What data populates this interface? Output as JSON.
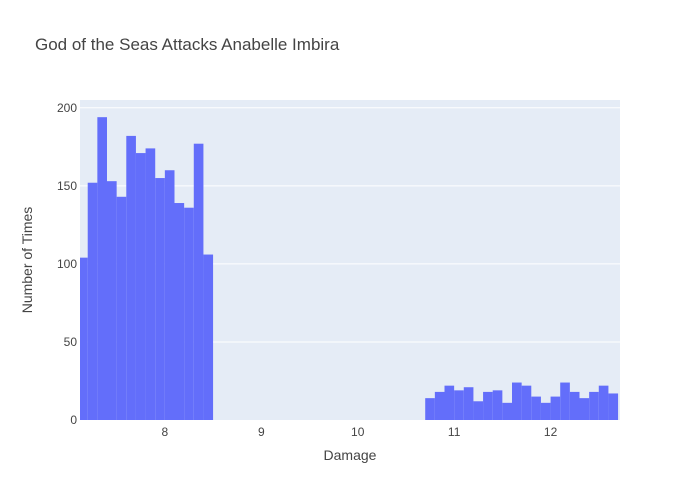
{
  "chart_data": {
    "type": "bar",
    "title": "God of the Seas Attacks Anabelle Imbira",
    "xlabel": "Damage",
    "ylabel": "Number of Times",
    "xlim": [
      7.12,
      12.72
    ],
    "ylim": [
      0,
      205
    ],
    "x_ticks": [
      8,
      9,
      10,
      11,
      12
    ],
    "y_ticks": [
      0,
      50,
      100,
      150,
      200
    ],
    "bin_width": 0.1,
    "grid": true,
    "colors": {
      "bar": "#636efa",
      "plot_bg": "#e5ecf6",
      "grid": "#ffffff",
      "text": "#444444"
    },
    "bins": [
      {
        "x": 7.1,
        "count": 104
      },
      {
        "x": 7.2,
        "count": 152
      },
      {
        "x": 7.3,
        "count": 194
      },
      {
        "x": 7.4,
        "count": 153
      },
      {
        "x": 7.5,
        "count": 143
      },
      {
        "x": 7.6,
        "count": 182
      },
      {
        "x": 7.7,
        "count": 171
      },
      {
        "x": 7.8,
        "count": 174
      },
      {
        "x": 7.9,
        "count": 155
      },
      {
        "x": 8.0,
        "count": 160
      },
      {
        "x": 8.1,
        "count": 139
      },
      {
        "x": 8.2,
        "count": 136
      },
      {
        "x": 8.3,
        "count": 177
      },
      {
        "x": 8.4,
        "count": 106
      },
      {
        "x": 10.7,
        "count": 14
      },
      {
        "x": 10.8,
        "count": 18
      },
      {
        "x": 10.9,
        "count": 22
      },
      {
        "x": 11.0,
        "count": 19
      },
      {
        "x": 11.1,
        "count": 21
      },
      {
        "x": 11.2,
        "count": 12
      },
      {
        "x": 11.3,
        "count": 18
      },
      {
        "x": 11.4,
        "count": 19
      },
      {
        "x": 11.5,
        "count": 11
      },
      {
        "x": 11.6,
        "count": 24
      },
      {
        "x": 11.7,
        "count": 22
      },
      {
        "x": 11.8,
        "count": 15
      },
      {
        "x": 11.9,
        "count": 11
      },
      {
        "x": 12.0,
        "count": 15
      },
      {
        "x": 12.1,
        "count": 24
      },
      {
        "x": 12.2,
        "count": 18
      },
      {
        "x": 12.3,
        "count": 14
      },
      {
        "x": 12.4,
        "count": 18
      },
      {
        "x": 12.5,
        "count": 22
      },
      {
        "x": 12.6,
        "count": 17
      }
    ]
  }
}
